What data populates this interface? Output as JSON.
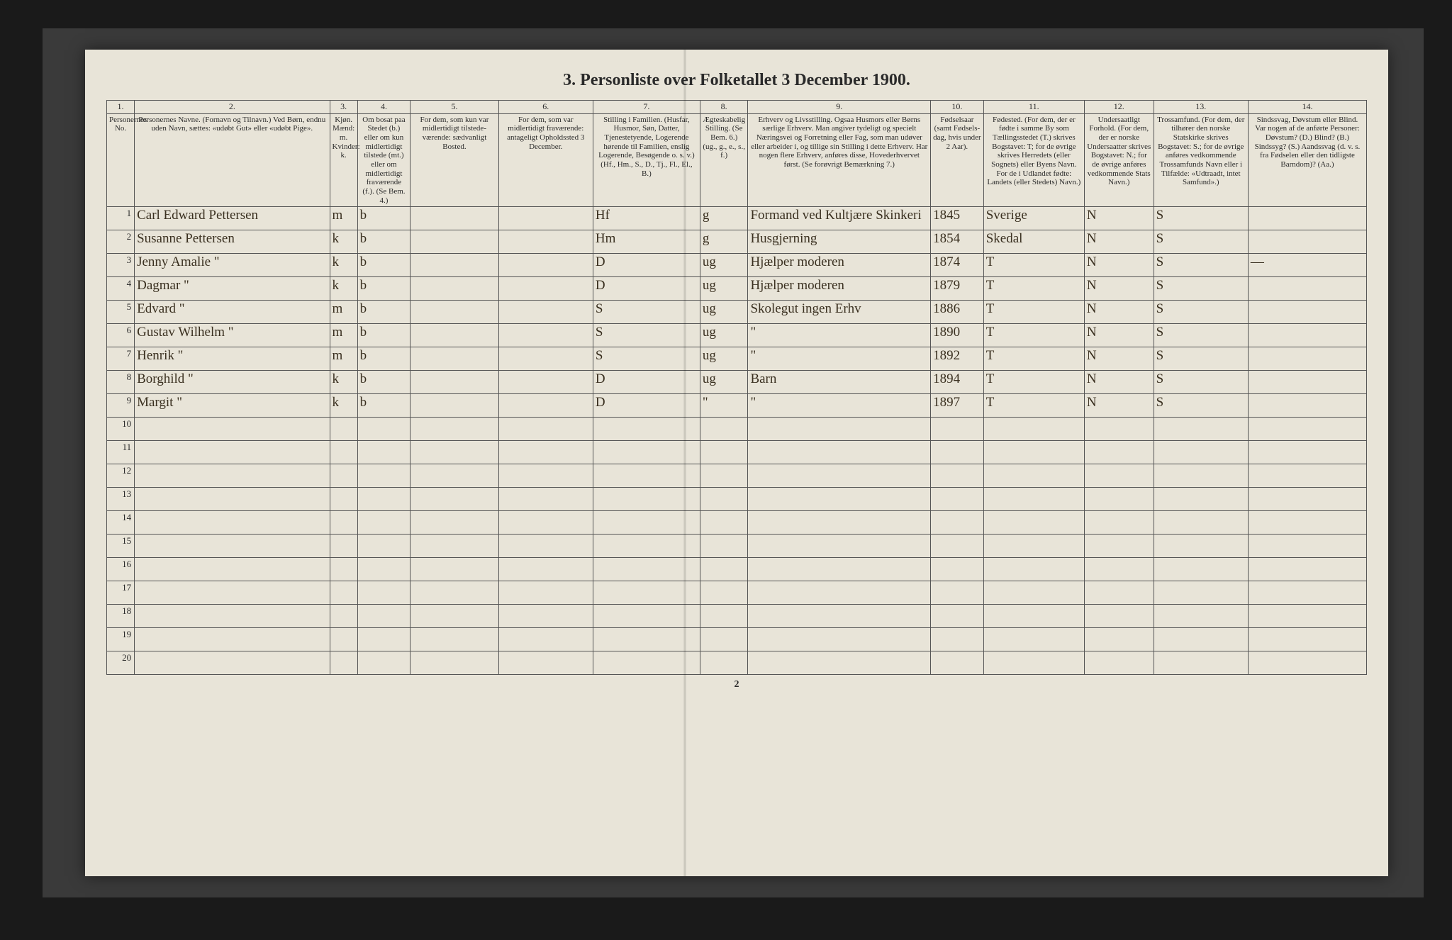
{
  "title": "3. Personliste over Folketallet 3 December 1900.",
  "page_number": "2",
  "colors": {
    "page_bg": "#e8e4d8",
    "frame_bg": "#1a1a1a",
    "ink": "#2a2a2a",
    "handwriting": "#3a3020",
    "rule": "#555555"
  },
  "column_numbers": [
    "1.",
    "2.",
    "3.",
    "4.",
    "5.",
    "6.",
    "7.",
    "8.",
    "9.",
    "10.",
    "11.",
    "12.",
    "13.",
    "14."
  ],
  "column_headers": [
    "Personernes No.",
    "Personernes Navne.\n(Fornavn og Tilnavn.)\nVed Børn, endnu uden Navn, sættes: «udøbt Gut» eller «udøbt Pige».",
    "Kjøn.\nMænd: m.\nKvinder: k.",
    "Om bosat paa Stedet (b.) eller om kun midlertidigt tilstede (mt.) eller om midlertidigt fraværende (f.). (Se Bem. 4.)",
    "For dem, som kun var midlertidigt tilstede­værende:\nsædvanligt Bosted.",
    "For dem, som var midlertidigt fraværende:\nantageligt Opholdssted 3 December.",
    "Stilling i Familien.\n(Husfar, Husmor, Søn, Datter, Tjenestetyende, Logerende hørende til Familien, enslig Logerende, Besøgende o. s. v.)\n(Hf., Hm., S., D., Tj., Fl., El., B.)",
    "Ægte­skabelig Stilling.\n(Se Bem. 6.)\n(ug., g., e., s., f.)",
    "Erhverv og Livsstilling.\nOgsaa Husmors eller Børns særlige Erhverv. Man angiver tydeligt og specielt Næringsvei og Forretning eller Fag, som man udøver eller arbeider i, og tillige sin Stilling i dette Erhverv. Har nogen flere Erhverv, anføres disse, Hoved­erhvervet først.\n(Se forøvrigt Bemærkning 7.)",
    "Fødsels­aar\n(samt Fødsels­dag, hvis under 2 Aar).",
    "Fødested.\n(For dem, der er fødte i samme By som Tællings­stedet (T.) skrives Bogstavet: T; for de øvrige skrives Herredets (eller Sognets) eller Byens Navn. For de i Udlandet fødte: Landets (eller Stedets) Navn.)",
    "Undersaatligt Forhold.\n(For dem, der er norske Undersaatter skrives Bogstavet: N.; for de øvrige anføres vedkommende Stats Navn.)",
    "Trossamfund.\n(For dem, der tilhører den norske Statskirke skrives Bogstavet: S.; for de øvrige anføres vedkommende Trossamfunds Navn eller i Tilfælde: «Udtraadt, intet Samfund».)",
    "Sindssvag, Døvstum eller Blind.\nVar nogen af de anførte Personer:\nDøvstum? (D.)\nBlind? (B.)\nSindssyg? (S.)\nAandssvag (d. v. s. fra Fødselen eller den tidligste Barndom)? (Aa.)"
  ],
  "rows": [
    {
      "no": "1",
      "navn": "Carl Edward Pettersen",
      "kj": "m",
      "bos": "b",
      "mt": "",
      "mf": "",
      "stf": "Hf",
      "aeg": "g",
      "erh": "Formand ved Kultjære Skinkeri",
      "faar": "1845",
      "fst": "Sverige",
      "und": "N",
      "tro": "S",
      "sin": ""
    },
    {
      "no": "2",
      "navn": "Susanne Pettersen",
      "kj": "k",
      "bos": "b",
      "mt": "",
      "mf": "",
      "stf": "Hm",
      "aeg": "g",
      "erh": "Husgjerning",
      "faar": "1854",
      "fst": "Skedal",
      "und": "N",
      "tro": "S",
      "sin": ""
    },
    {
      "no": "3",
      "navn": "Jenny Amalie   \"",
      "kj": "k",
      "bos": "b",
      "mt": "",
      "mf": "",
      "stf": "D",
      "aeg": "ug",
      "erh": "Hjælper moderen",
      "faar": "1874",
      "fst": "T",
      "und": "N",
      "tro": "S",
      "sin": "—"
    },
    {
      "no": "4",
      "navn": "Dagmar   \"",
      "kj": "k",
      "bos": "b",
      "mt": "",
      "mf": "",
      "stf": "D",
      "aeg": "ug",
      "erh": "Hjælper moderen",
      "faar": "1879",
      "fst": "T",
      "und": "N",
      "tro": "S",
      "sin": ""
    },
    {
      "no": "5",
      "navn": "Edvard   \"",
      "kj": "m",
      "bos": "b",
      "mt": "",
      "mf": "",
      "stf": "S",
      "aeg": "ug",
      "erh": "Skolegut ingen Erhv",
      "faar": "1886",
      "fst": "T",
      "und": "N",
      "tro": "S",
      "sin": ""
    },
    {
      "no": "6",
      "navn": "Gustav Wilhelm   \"",
      "kj": "m",
      "bos": "b",
      "mt": "",
      "mf": "",
      "stf": "S",
      "aeg": "ug",
      "erh": "\"",
      "faar": "1890",
      "fst": "T",
      "und": "N",
      "tro": "S",
      "sin": ""
    },
    {
      "no": "7",
      "navn": "Henrik   \"",
      "kj": "m",
      "bos": "b",
      "mt": "",
      "mf": "",
      "stf": "S",
      "aeg": "ug",
      "erh": "\"",
      "faar": "1892",
      "fst": "T",
      "und": "N",
      "tro": "S",
      "sin": ""
    },
    {
      "no": "8",
      "navn": "Borghild   \"",
      "kj": "k",
      "bos": "b",
      "mt": "",
      "mf": "",
      "stf": "D",
      "aeg": "ug",
      "erh": "Barn",
      "faar": "1894",
      "fst": "T",
      "und": "N",
      "tro": "S",
      "sin": ""
    },
    {
      "no": "9",
      "navn": "Margit   \"",
      "kj": "k",
      "bos": "b",
      "mt": "",
      "mf": "",
      "stf": "D",
      "aeg": "\"",
      "erh": "\"",
      "faar": "1897",
      "fst": "T",
      "und": "N",
      "tro": "S",
      "sin": ""
    }
  ],
  "total_rows": 20
}
